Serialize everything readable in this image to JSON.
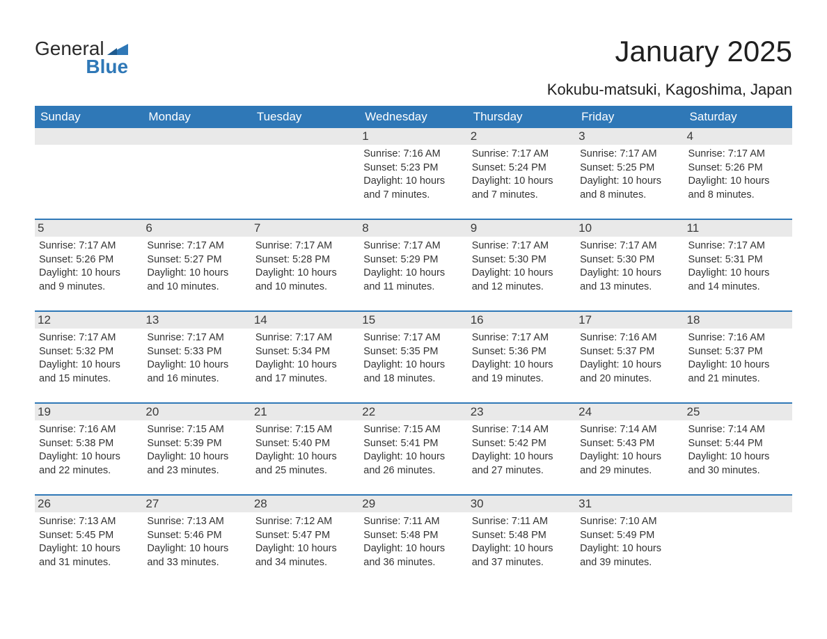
{
  "brand": {
    "general": "General",
    "blue": "Blue",
    "logo_color": "#2f78b7"
  },
  "title": "January 2025",
  "location": "Kokubu-matsuki, Kagoshima, Japan",
  "colors": {
    "header_bg": "#2f78b7",
    "header_text": "#ffffff",
    "daynum_bg": "#e9e9e9",
    "body_text": "#333333",
    "page_bg": "#ffffff",
    "row_border": "#2f78b7"
  },
  "fonts": {
    "title_size_pt": 32,
    "location_size_pt": 17,
    "header_size_pt": 13,
    "body_size_pt": 11
  },
  "weekdays": [
    "Sunday",
    "Monday",
    "Tuesday",
    "Wednesday",
    "Thursday",
    "Friday",
    "Saturday"
  ],
  "weeks": [
    [
      {
        "day": null
      },
      {
        "day": null
      },
      {
        "day": null
      },
      {
        "day": 1,
        "sunrise": "7:16 AM",
        "sunset": "5:23 PM",
        "daylight": "10 hours and 7 minutes."
      },
      {
        "day": 2,
        "sunrise": "7:17 AM",
        "sunset": "5:24 PM",
        "daylight": "10 hours and 7 minutes."
      },
      {
        "day": 3,
        "sunrise": "7:17 AM",
        "sunset": "5:25 PM",
        "daylight": "10 hours and 8 minutes."
      },
      {
        "day": 4,
        "sunrise": "7:17 AM",
        "sunset": "5:26 PM",
        "daylight": "10 hours and 8 minutes."
      }
    ],
    [
      {
        "day": 5,
        "sunrise": "7:17 AM",
        "sunset": "5:26 PM",
        "daylight": "10 hours and 9 minutes."
      },
      {
        "day": 6,
        "sunrise": "7:17 AM",
        "sunset": "5:27 PM",
        "daylight": "10 hours and 10 minutes."
      },
      {
        "day": 7,
        "sunrise": "7:17 AM",
        "sunset": "5:28 PM",
        "daylight": "10 hours and 10 minutes."
      },
      {
        "day": 8,
        "sunrise": "7:17 AM",
        "sunset": "5:29 PM",
        "daylight": "10 hours and 11 minutes."
      },
      {
        "day": 9,
        "sunrise": "7:17 AM",
        "sunset": "5:30 PM",
        "daylight": "10 hours and 12 minutes."
      },
      {
        "day": 10,
        "sunrise": "7:17 AM",
        "sunset": "5:30 PM",
        "daylight": "10 hours and 13 minutes."
      },
      {
        "day": 11,
        "sunrise": "7:17 AM",
        "sunset": "5:31 PM",
        "daylight": "10 hours and 14 minutes."
      }
    ],
    [
      {
        "day": 12,
        "sunrise": "7:17 AM",
        "sunset": "5:32 PM",
        "daylight": "10 hours and 15 minutes."
      },
      {
        "day": 13,
        "sunrise": "7:17 AM",
        "sunset": "5:33 PM",
        "daylight": "10 hours and 16 minutes."
      },
      {
        "day": 14,
        "sunrise": "7:17 AM",
        "sunset": "5:34 PM",
        "daylight": "10 hours and 17 minutes."
      },
      {
        "day": 15,
        "sunrise": "7:17 AM",
        "sunset": "5:35 PM",
        "daylight": "10 hours and 18 minutes."
      },
      {
        "day": 16,
        "sunrise": "7:17 AM",
        "sunset": "5:36 PM",
        "daylight": "10 hours and 19 minutes."
      },
      {
        "day": 17,
        "sunrise": "7:16 AM",
        "sunset": "5:37 PM",
        "daylight": "10 hours and 20 minutes."
      },
      {
        "day": 18,
        "sunrise": "7:16 AM",
        "sunset": "5:37 PM",
        "daylight": "10 hours and 21 minutes."
      }
    ],
    [
      {
        "day": 19,
        "sunrise": "7:16 AM",
        "sunset": "5:38 PM",
        "daylight": "10 hours and 22 minutes."
      },
      {
        "day": 20,
        "sunrise": "7:15 AM",
        "sunset": "5:39 PM",
        "daylight": "10 hours and 23 minutes."
      },
      {
        "day": 21,
        "sunrise": "7:15 AM",
        "sunset": "5:40 PM",
        "daylight": "10 hours and 25 minutes."
      },
      {
        "day": 22,
        "sunrise": "7:15 AM",
        "sunset": "5:41 PM",
        "daylight": "10 hours and 26 minutes."
      },
      {
        "day": 23,
        "sunrise": "7:14 AM",
        "sunset": "5:42 PM",
        "daylight": "10 hours and 27 minutes."
      },
      {
        "day": 24,
        "sunrise": "7:14 AM",
        "sunset": "5:43 PM",
        "daylight": "10 hours and 29 minutes."
      },
      {
        "day": 25,
        "sunrise": "7:14 AM",
        "sunset": "5:44 PM",
        "daylight": "10 hours and 30 minutes."
      }
    ],
    [
      {
        "day": 26,
        "sunrise": "7:13 AM",
        "sunset": "5:45 PM",
        "daylight": "10 hours and 31 minutes."
      },
      {
        "day": 27,
        "sunrise": "7:13 AM",
        "sunset": "5:46 PM",
        "daylight": "10 hours and 33 minutes."
      },
      {
        "day": 28,
        "sunrise": "7:12 AM",
        "sunset": "5:47 PM",
        "daylight": "10 hours and 34 minutes."
      },
      {
        "day": 29,
        "sunrise": "7:11 AM",
        "sunset": "5:48 PM",
        "daylight": "10 hours and 36 minutes."
      },
      {
        "day": 30,
        "sunrise": "7:11 AM",
        "sunset": "5:48 PM",
        "daylight": "10 hours and 37 minutes."
      },
      {
        "day": 31,
        "sunrise": "7:10 AM",
        "sunset": "5:49 PM",
        "daylight": "10 hours and 39 minutes."
      },
      {
        "day": null
      }
    ]
  ],
  "labels": {
    "sunrise_prefix": "Sunrise: ",
    "sunset_prefix": "Sunset: ",
    "daylight_prefix": "Daylight: "
  }
}
